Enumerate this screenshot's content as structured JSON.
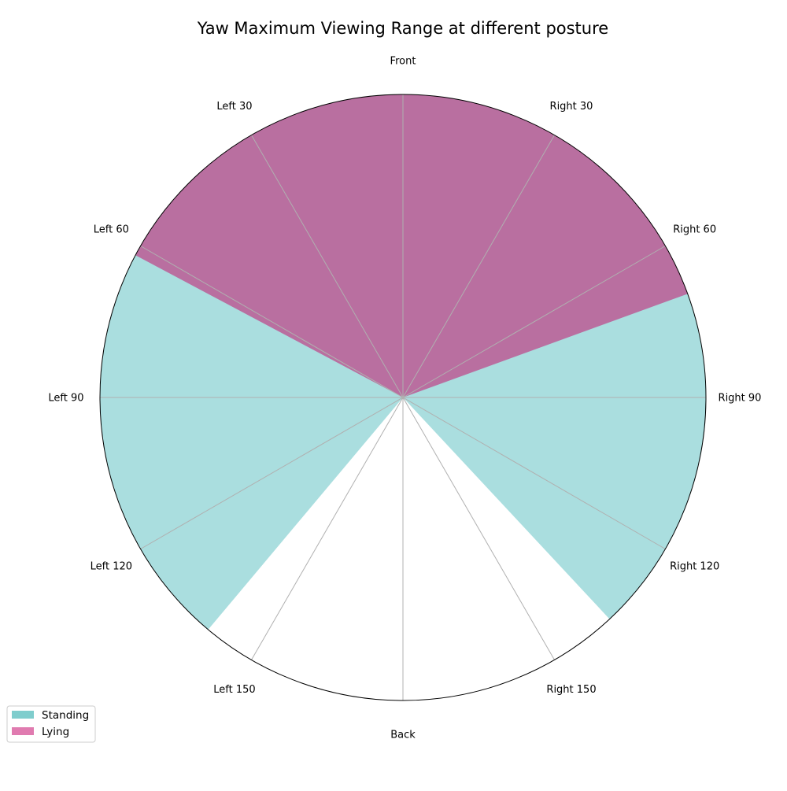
{
  "chart_data": {
    "type": "polar-sector",
    "title": "Yaw Maximum Viewing Range at different posture",
    "direction_labels": [
      "Front",
      "Right 30",
      "Right 60",
      "Right 90",
      "Right 120",
      "Right 150",
      "Back",
      "Left 150",
      "Left 120",
      "Left 90",
      "Left 60",
      "Left 30"
    ],
    "grid": true,
    "legend_position": "lower-left",
    "series": [
      {
        "name": "Standing",
        "color": "#7fcdcd",
        "range_deg": [
          -140,
          137
        ],
        "color_hex": "#aadedf"
      },
      {
        "name": "Lying",
        "color": "#e07bb0",
        "range_deg": [
          -62,
          70
        ],
        "color_hex": "#b96fa0"
      }
    ]
  }
}
